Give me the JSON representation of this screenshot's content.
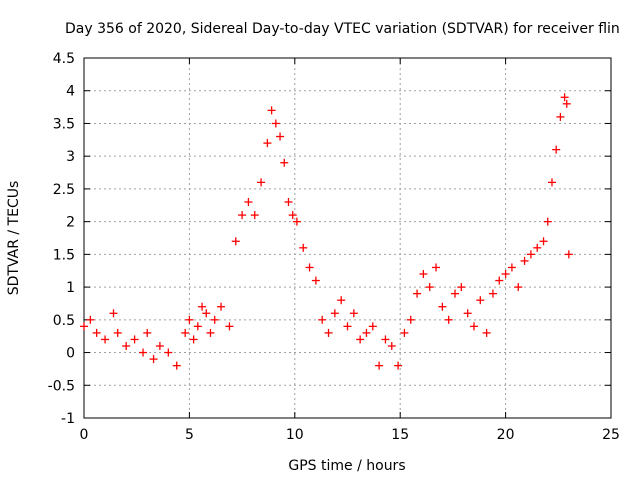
{
  "chart_data": {
    "type": "scatter",
    "title": "Day 356 of 2020, Sidereal Day-to-day VTEC variation (SDTVAR) for receiver flin",
    "xlabel": "GPS time / hours",
    "ylabel": "SDTVAR / TECUs",
    "xlim": [
      0,
      25
    ],
    "ylim": [
      -1,
      4.5
    ],
    "xticks": [
      0,
      5,
      10,
      15,
      20,
      25
    ],
    "yticks": [
      -1,
      -0.5,
      0,
      0.5,
      1,
      1.5,
      2,
      2.5,
      3,
      3.5,
      4,
      4.5
    ],
    "xtick_labels": [
      "0",
      "5",
      "10",
      "15",
      "20",
      "25"
    ],
    "ytick_labels": [
      "-1",
      "-0.5",
      "0",
      "0.5",
      "1",
      "1.5",
      "2",
      "2.5",
      "3",
      "3.5",
      "4",
      "4.5"
    ],
    "grid": true,
    "marker": "+",
    "color": "#ff0000",
    "series": [
      {
        "name": "SDTVAR",
        "x": [
          0.0,
          0.3,
          0.6,
          1.0,
          1.4,
          1.6,
          2.0,
          2.4,
          2.8,
          3.0,
          3.3,
          3.6,
          4.0,
          4.4,
          4.8,
          5.0,
          5.2,
          5.4,
          5.6,
          5.8,
          6.0,
          6.2,
          6.5,
          6.9,
          7.2,
          7.5,
          7.8,
          8.1,
          8.4,
          8.7,
          8.9,
          9.1,
          9.3,
          9.5,
          9.7,
          9.9,
          10.1,
          10.4,
          10.7,
          11.0,
          11.3,
          11.6,
          11.9,
          12.2,
          12.5,
          12.8,
          13.1,
          13.4,
          13.7,
          14.0,
          14.3,
          14.6,
          14.9,
          15.2,
          15.5,
          15.8,
          16.1,
          16.4,
          16.7,
          17.0,
          17.3,
          17.6,
          17.9,
          18.2,
          18.5,
          18.8,
          19.1,
          19.4,
          19.7,
          20.0,
          20.3,
          20.6,
          20.9,
          21.2,
          21.5,
          21.8,
          22.0,
          22.2,
          22.4,
          22.6,
          22.8,
          22.9,
          23.0
        ],
        "y": [
          0.4,
          0.5,
          0.3,
          0.2,
          0.6,
          0.3,
          0.1,
          0.2,
          0.0,
          0.3,
          -0.1,
          0.1,
          0.0,
          -0.2,
          0.3,
          0.5,
          0.2,
          0.4,
          0.7,
          0.6,
          0.3,
          0.5,
          0.7,
          0.4,
          1.7,
          2.1,
          2.3,
          2.1,
          2.6,
          3.2,
          3.7,
          3.5,
          3.3,
          2.9,
          2.3,
          2.1,
          2.0,
          1.6,
          1.3,
          1.1,
          0.5,
          0.3,
          0.6,
          0.8,
          0.4,
          0.6,
          0.2,
          0.3,
          0.4,
          -0.2,
          0.2,
          0.1,
          -0.2,
          0.3,
          0.5,
          0.9,
          1.2,
          1.0,
          1.3,
          0.7,
          0.5,
          0.9,
          1.0,
          0.6,
          0.4,
          0.8,
          0.3,
          0.9,
          1.1,
          1.2,
          1.3,
          1.0,
          1.4,
          1.5,
          1.6,
          1.7,
          2.0,
          2.6,
          3.1,
          3.6,
          3.9,
          3.8,
          1.5
        ]
      }
    ]
  }
}
